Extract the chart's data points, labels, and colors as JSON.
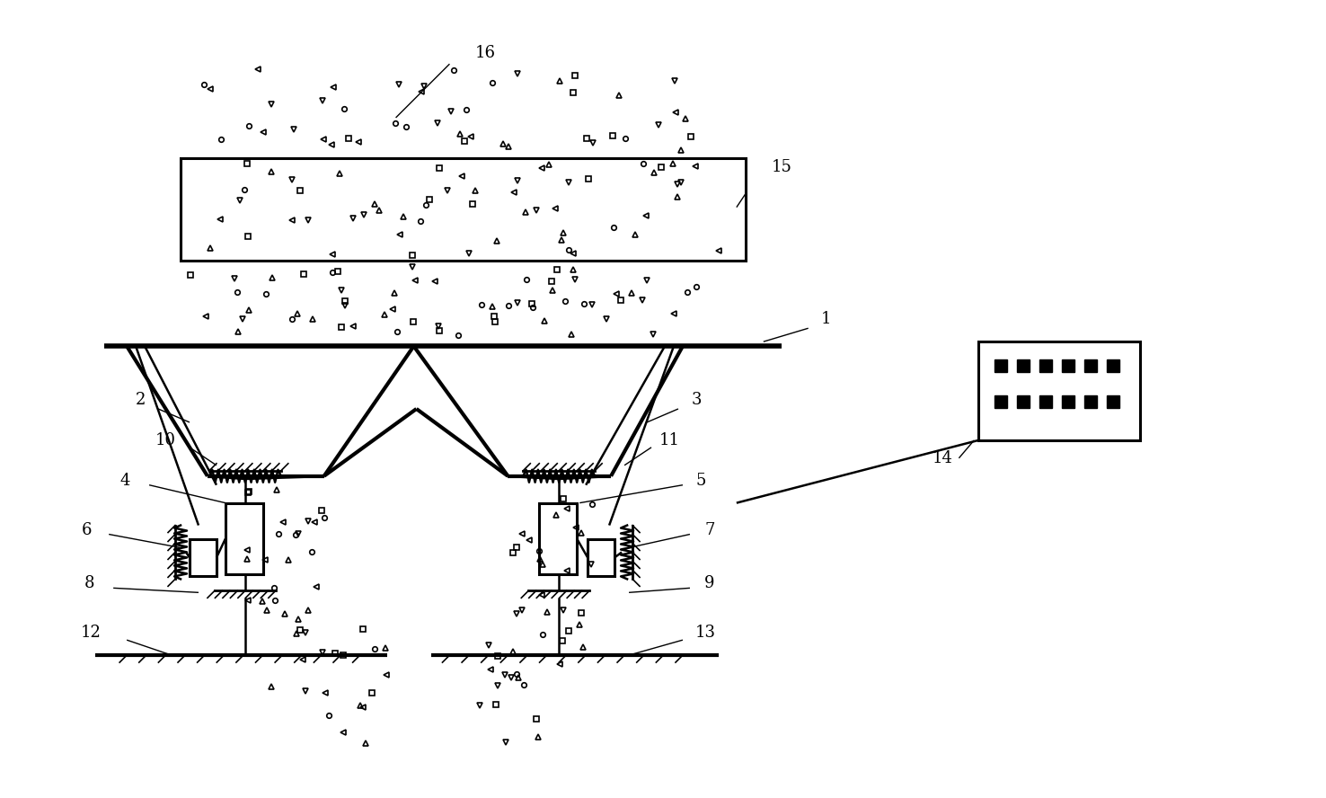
{
  "bg_color": "#ffffff",
  "lw": 1.8,
  "lw_thick": 3.0,
  "lw_medium": 2.2,
  "fig_w": 14.76,
  "fig_h": 8.88,
  "label_fontsize": 13
}
